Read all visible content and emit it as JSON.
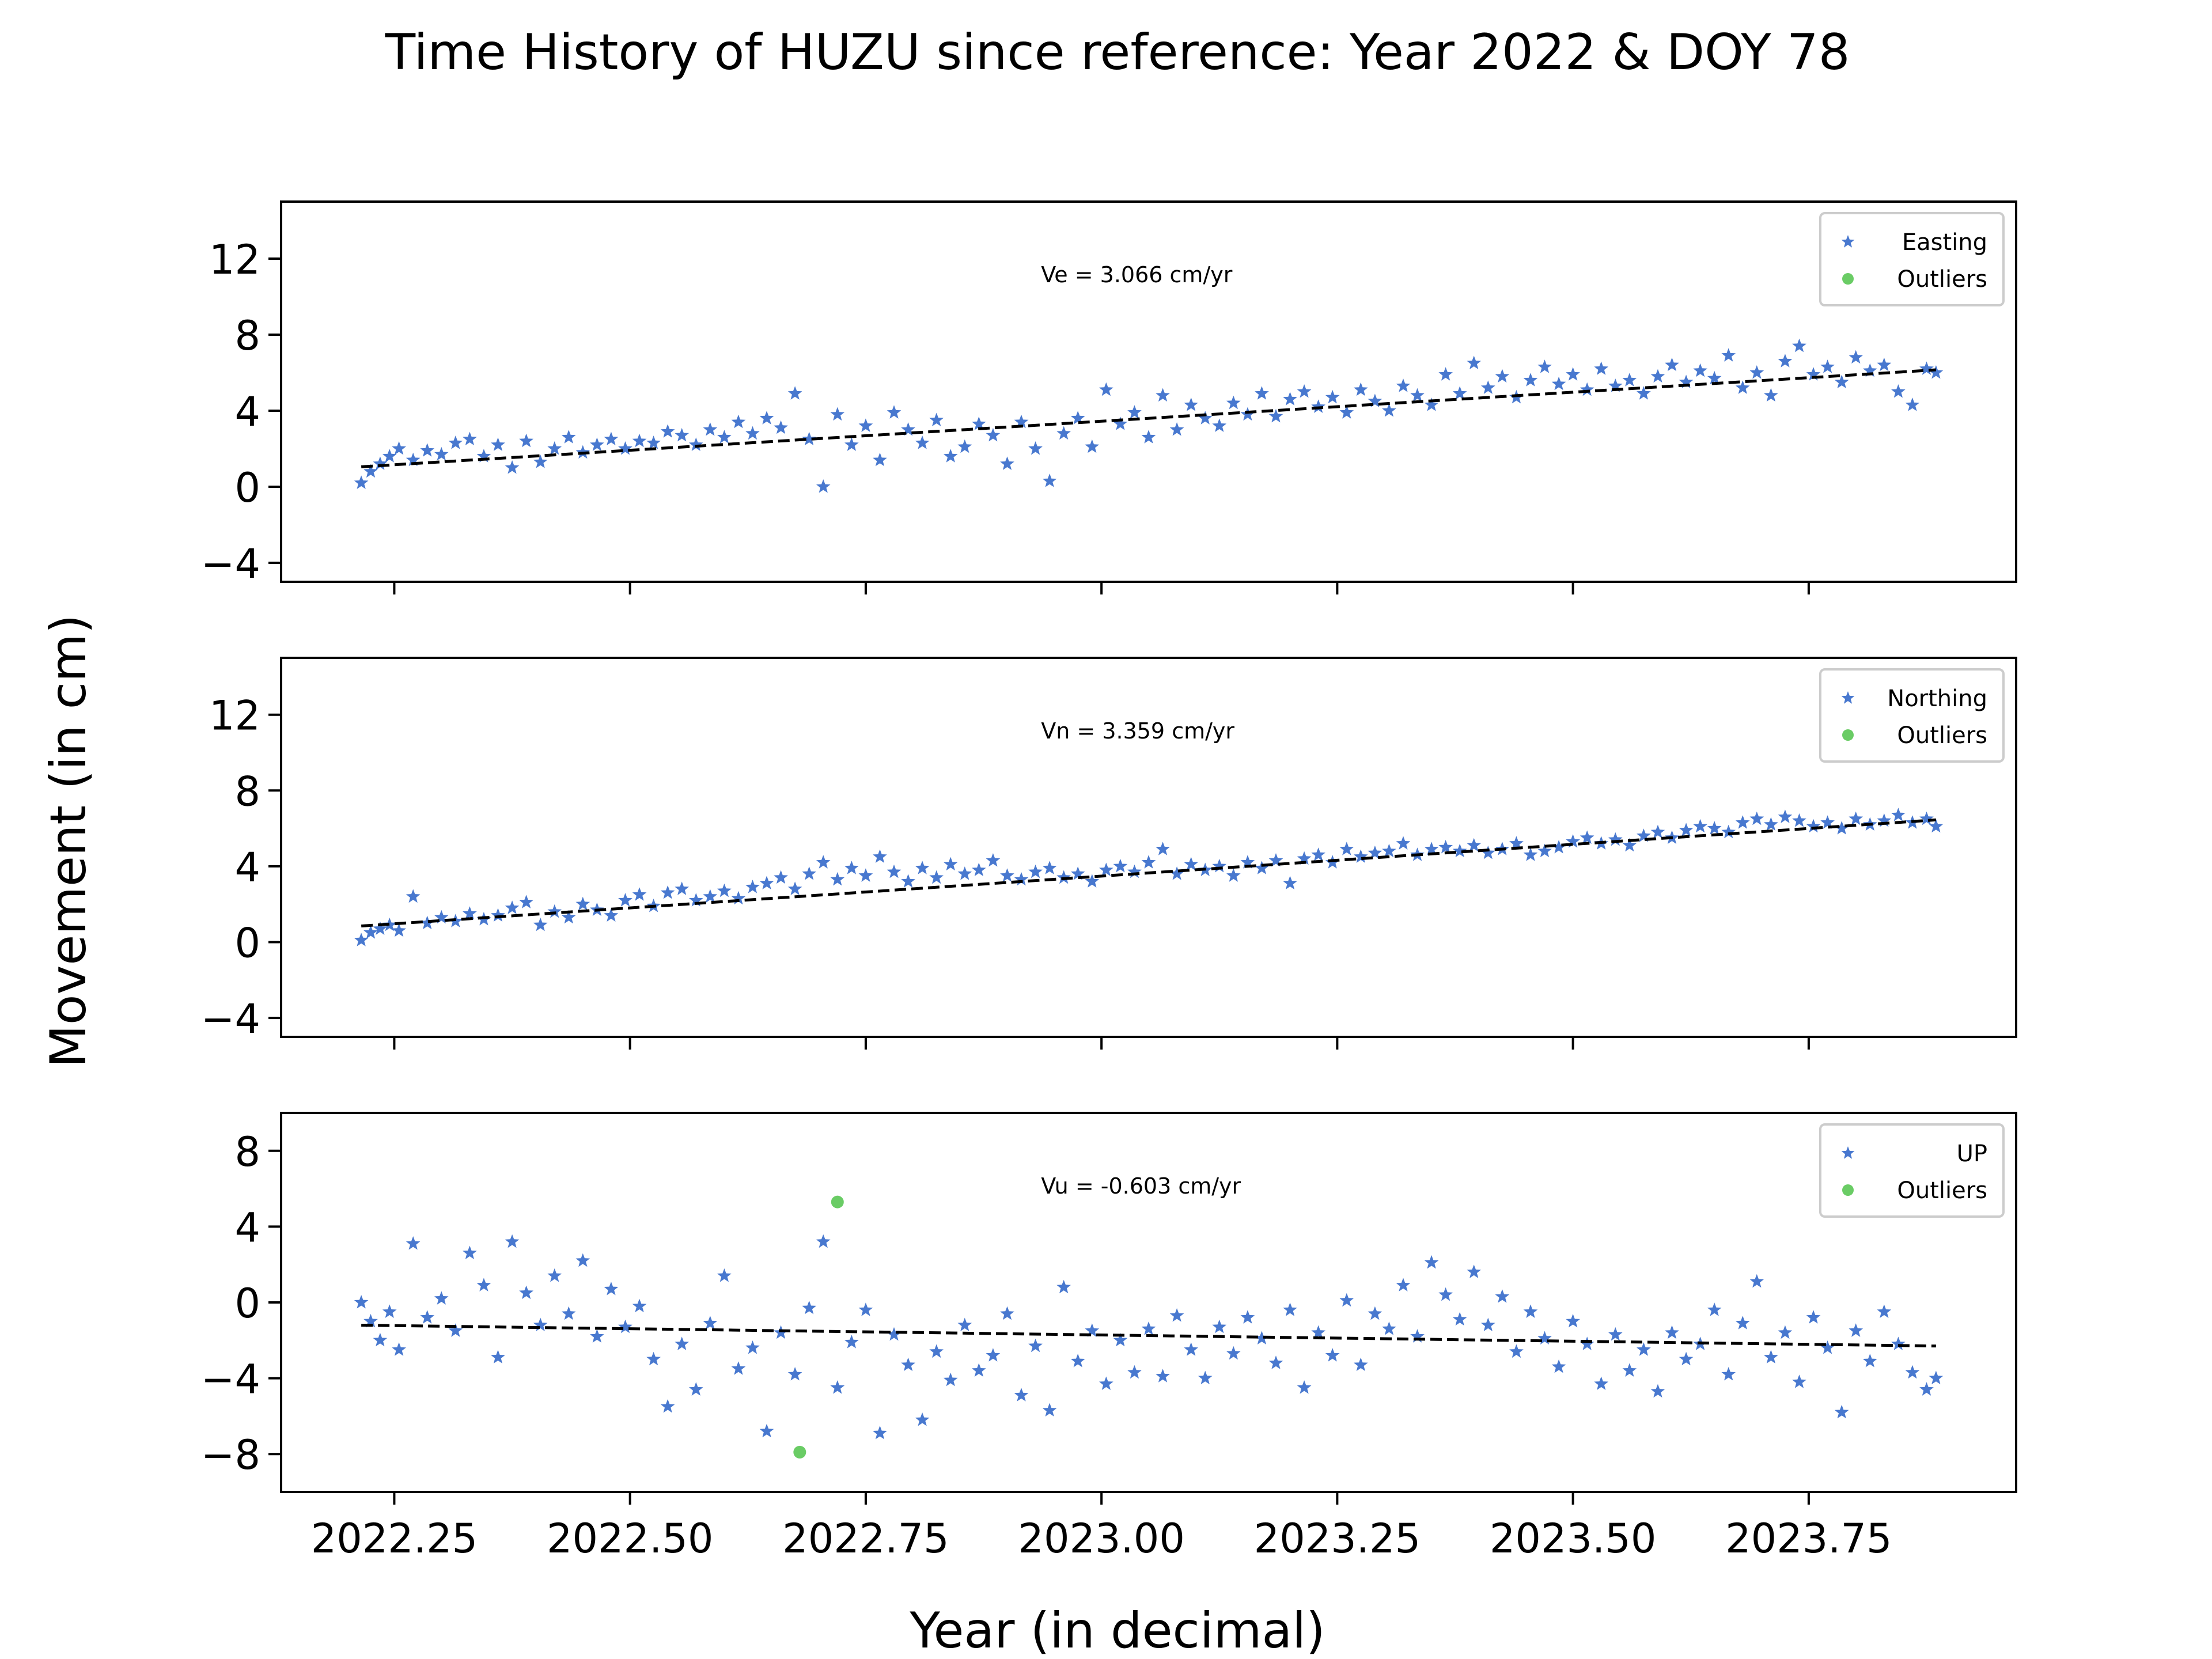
{
  "figure": {
    "title": "Time History of HUZU since reference: Year 2022 & DOY 78",
    "xlabel": "Year (in decimal)",
    "ylabel": "Movement (in cm)"
  },
  "colors": {
    "data": "#4878cf",
    "outlier": "#6acc65",
    "fit": "#000000"
  },
  "chart_data": [
    {
      "type": "scatter",
      "component": "Easting",
      "annotation": "Ve =  3.066 cm/yr",
      "xlim": [
        2022.13,
        2023.97
      ],
      "ylim": [
        -5,
        15
      ],
      "xticks": [
        2022.25,
        2022.5,
        2022.75,
        2023.0,
        2023.25,
        2023.5,
        2023.75
      ],
      "xtick_labels": [],
      "yticks": [
        -4,
        0,
        4,
        8,
        12
      ],
      "ytick_labels": [
        "−4",
        "0",
        "4",
        "8",
        "12"
      ],
      "legend": {
        "position": "top-right",
        "entries": [
          "Easting",
          "Outliers"
        ]
      },
      "fit": {
        "x": [
          2022.215,
          2023.885
        ],
        "y": [
          1.05,
          6.15
        ]
      },
      "series": [
        {
          "name": "Easting",
          "marker": "star",
          "x": [
            2022.215,
            2022.225,
            2022.235,
            2022.245,
            2022.255,
            2022.27,
            2022.285,
            2022.3,
            2022.315,
            2022.33,
            2022.345,
            2022.36,
            2022.375,
            2022.39,
            2022.405,
            2022.42,
            2022.435,
            2022.45,
            2022.465,
            2022.48,
            2022.495,
            2022.51,
            2022.525,
            2022.54,
            2022.555,
            2022.57,
            2022.585,
            2022.6,
            2022.615,
            2022.63,
            2022.645,
            2022.66,
            2022.675,
            2022.69,
            2022.705,
            2022.72,
            2022.735,
            2022.75,
            2022.765,
            2022.78,
            2022.795,
            2022.81,
            2022.825,
            2022.84,
            2022.855,
            2022.87,
            2022.885,
            2022.9,
            2022.915,
            2022.93,
            2022.945,
            2022.96,
            2022.975,
            2022.99,
            2023.005,
            2023.02,
            2023.035,
            2023.05,
            2023.065,
            2023.08,
            2023.095,
            2023.11,
            2023.125,
            2023.14,
            2023.155,
            2023.17,
            2023.185,
            2023.2,
            2023.215,
            2023.23,
            2023.245,
            2023.26,
            2023.275,
            2023.29,
            2023.305,
            2023.32,
            2023.335,
            2023.35,
            2023.365,
            2023.38,
            2023.395,
            2023.41,
            2023.425,
            2023.44,
            2023.455,
            2023.47,
            2023.485,
            2023.5,
            2023.515,
            2023.53,
            2023.545,
            2023.56,
            2023.575,
            2023.59,
            2023.605,
            2023.62,
            2023.635,
            2023.65,
            2023.665,
            2023.68,
            2023.695,
            2023.71,
            2023.725,
            2023.74,
            2023.755,
            2023.77,
            2023.785,
            2023.8,
            2023.815,
            2023.83,
            2023.845,
            2023.86,
            2023.875,
            2023.885
          ],
          "y": [
            0.2,
            0.8,
            1.2,
            1.6,
            2.0,
            1.4,
            1.9,
            1.7,
            2.3,
            2.5,
            1.6,
            2.2,
            1.0,
            2.4,
            1.3,
            2.0,
            2.6,
            1.8,
            2.2,
            2.5,
            2.0,
            2.4,
            2.3,
            2.9,
            2.7,
            2.2,
            3.0,
            2.6,
            3.4,
            2.8,
            3.6,
            3.1,
            4.9,
            2.5,
            0.0,
            3.8,
            2.2,
            3.2,
            1.4,
            3.9,
            3.0,
            2.3,
            3.5,
            1.6,
            2.1,
            3.3,
            2.7,
            1.2,
            3.4,
            2.0,
            0.3,
            2.8,
            3.6,
            2.1,
            5.1,
            3.3,
            3.9,
            2.6,
            4.8,
            3.0,
            4.3,
            3.6,
            3.2,
            4.4,
            3.8,
            4.9,
            3.7,
            4.6,
            5.0,
            4.2,
            4.7,
            3.9,
            5.1,
            4.5,
            4.0,
            5.3,
            4.8,
            4.3,
            5.9,
            4.9,
            6.5,
            5.2,
            5.8,
            4.7,
            5.6,
            6.3,
            5.4,
            5.9,
            5.1,
            6.2,
            5.3,
            5.6,
            4.9,
            5.8,
            6.4,
            5.5,
            6.1,
            5.7,
            6.9,
            5.2,
            6.0,
            4.8,
            6.6,
            7.4,
            5.9,
            6.3,
            5.5,
            6.8,
            6.1,
            6.4,
            5.0,
            4.3,
            6.2,
            6.0
          ]
        },
        {
          "name": "Outliers",
          "marker": "circle",
          "x": [],
          "y": []
        }
      ]
    },
    {
      "type": "scatter",
      "component": "Northing",
      "annotation": "Vn =  3.359 cm/yr",
      "xlim": [
        2022.13,
        2023.97
      ],
      "ylim": [
        -5,
        15
      ],
      "xticks": [
        2022.25,
        2022.5,
        2022.75,
        2023.0,
        2023.25,
        2023.5,
        2023.75
      ],
      "xtick_labels": [],
      "yticks": [
        -4,
        0,
        4,
        8,
        12
      ],
      "ytick_labels": [
        "−4",
        "0",
        "4",
        "8",
        "12"
      ],
      "legend": {
        "position": "top-right",
        "entries": [
          "Northing",
          "Outliers"
        ]
      },
      "fit": {
        "x": [
          2022.215,
          2023.885
        ],
        "y": [
          0.85,
          6.45
        ]
      },
      "series": [
        {
          "name": "Northing",
          "marker": "star",
          "x": [
            2022.215,
            2022.225,
            2022.235,
            2022.245,
            2022.255,
            2022.27,
            2022.285,
            2022.3,
            2022.315,
            2022.33,
            2022.345,
            2022.36,
            2022.375,
            2022.39,
            2022.405,
            2022.42,
            2022.435,
            2022.45,
            2022.465,
            2022.48,
            2022.495,
            2022.51,
            2022.525,
            2022.54,
            2022.555,
            2022.57,
            2022.585,
            2022.6,
            2022.615,
            2022.63,
            2022.645,
            2022.66,
            2022.675,
            2022.69,
            2022.705,
            2022.72,
            2022.735,
            2022.75,
            2022.765,
            2022.78,
            2022.795,
            2022.81,
            2022.825,
            2022.84,
            2022.855,
            2022.87,
            2022.885,
            2022.9,
            2022.915,
            2022.93,
            2022.945,
            2022.96,
            2022.975,
            2022.99,
            2023.005,
            2023.02,
            2023.035,
            2023.05,
            2023.065,
            2023.08,
            2023.095,
            2023.11,
            2023.125,
            2023.14,
            2023.155,
            2023.17,
            2023.185,
            2023.2,
            2023.215,
            2023.23,
            2023.245,
            2023.26,
            2023.275,
            2023.29,
            2023.305,
            2023.32,
            2023.335,
            2023.35,
            2023.365,
            2023.38,
            2023.395,
            2023.41,
            2023.425,
            2023.44,
            2023.455,
            2023.47,
            2023.485,
            2023.5,
            2023.515,
            2023.53,
            2023.545,
            2023.56,
            2023.575,
            2023.59,
            2023.605,
            2023.62,
            2023.635,
            2023.65,
            2023.665,
            2023.68,
            2023.695,
            2023.71,
            2023.725,
            2023.74,
            2023.755,
            2023.77,
            2023.785,
            2023.8,
            2023.815,
            2023.83,
            2023.845,
            2023.86,
            2023.875,
            2023.885
          ],
          "y": [
            0.1,
            0.5,
            0.7,
            0.9,
            0.6,
            2.4,
            1.0,
            1.3,
            1.1,
            1.5,
            1.2,
            1.4,
            1.8,
            2.1,
            0.9,
            1.6,
            1.3,
            2.0,
            1.7,
            1.4,
            2.2,
            2.5,
            1.9,
            2.6,
            2.8,
            2.2,
            2.4,
            2.7,
            2.3,
            2.9,
            3.1,
            3.4,
            2.8,
            3.6,
            4.2,
            3.3,
            3.9,
            3.5,
            4.5,
            3.7,
            3.2,
            3.9,
            3.4,
            4.1,
            3.6,
            3.8,
            4.3,
            3.5,
            3.3,
            3.7,
            3.9,
            3.4,
            3.6,
            3.2,
            3.8,
            4.0,
            3.7,
            4.2,
            4.9,
            3.6,
            4.1,
            3.8,
            4.0,
            3.5,
            4.2,
            3.9,
            4.3,
            3.1,
            4.4,
            4.6,
            4.2,
            4.9,
            4.5,
            4.7,
            4.8,
            5.2,
            4.6,
            4.9,
            5.0,
            4.8,
            5.1,
            4.7,
            4.9,
            5.2,
            4.6,
            4.8,
            5.0,
            5.3,
            5.5,
            5.2,
            5.4,
            5.1,
            5.6,
            5.8,
            5.5,
            5.9,
            6.1,
            6.0,
            5.8,
            6.3,
            6.5,
            6.2,
            6.6,
            6.4,
            6.1,
            6.3,
            6.0,
            6.5,
            6.2,
            6.4,
            6.7,
            6.3,
            6.5,
            6.1
          ]
        },
        {
          "name": "Outliers",
          "marker": "circle",
          "x": [],
          "y": []
        }
      ]
    },
    {
      "type": "scatter",
      "component": "UP",
      "annotation": "Vu = -0.603 cm/yr",
      "xlim": [
        2022.13,
        2023.97
      ],
      "ylim": [
        -10,
        10
      ],
      "xticks": [
        2022.25,
        2022.5,
        2022.75,
        2023.0,
        2023.25,
        2023.5,
        2023.75
      ],
      "xtick_labels": [
        "2022.25",
        "2022.50",
        "2022.75",
        "2023.00",
        "2023.25",
        "2023.50",
        "2023.75"
      ],
      "yticks": [
        -8,
        -4,
        0,
        4,
        8
      ],
      "ytick_labels": [
        "−8",
        "−4",
        "0",
        "4",
        "8"
      ],
      "legend": {
        "position": "top-right",
        "entries": [
          "UP",
          "Outliers"
        ]
      },
      "fit": {
        "x": [
          2022.215,
          2023.885
        ],
        "y": [
          -1.2,
          -2.3
        ]
      },
      "series": [
        {
          "name": "UP",
          "marker": "star",
          "x": [
            2022.215,
            2022.225,
            2022.235,
            2022.245,
            2022.255,
            2022.27,
            2022.285,
            2022.3,
            2022.315,
            2022.33,
            2022.345,
            2022.36,
            2022.375,
            2022.39,
            2022.405,
            2022.42,
            2022.435,
            2022.45,
            2022.465,
            2022.48,
            2022.495,
            2022.51,
            2022.525,
            2022.54,
            2022.555,
            2022.57,
            2022.585,
            2022.6,
            2022.615,
            2022.63,
            2022.645,
            2022.66,
            2022.675,
            2022.69,
            2022.705,
            2022.72,
            2022.735,
            2022.75,
            2022.765,
            2022.78,
            2022.795,
            2022.81,
            2022.825,
            2022.84,
            2022.855,
            2022.87,
            2022.885,
            2022.9,
            2022.915,
            2022.93,
            2022.945,
            2022.96,
            2022.975,
            2022.99,
            2023.005,
            2023.02,
            2023.035,
            2023.05,
            2023.065,
            2023.08,
            2023.095,
            2023.11,
            2023.125,
            2023.14,
            2023.155,
            2023.17,
            2023.185,
            2023.2,
            2023.215,
            2023.23,
            2023.245,
            2023.26,
            2023.275,
            2023.29,
            2023.305,
            2023.32,
            2023.335,
            2023.35,
            2023.365,
            2023.38,
            2023.395,
            2023.41,
            2023.425,
            2023.44,
            2023.455,
            2023.47,
            2023.485,
            2023.5,
            2023.515,
            2023.53,
            2023.545,
            2023.56,
            2023.575,
            2023.59,
            2023.605,
            2023.62,
            2023.635,
            2023.65,
            2023.665,
            2023.68,
            2023.695,
            2023.71,
            2023.725,
            2023.74,
            2023.755,
            2023.77,
            2023.785,
            2023.8,
            2023.815,
            2023.83,
            2023.845,
            2023.86,
            2023.875,
            2023.885
          ],
          "y": [
            0.0,
            -1.0,
            -2.0,
            -0.5,
            -2.5,
            3.1,
            -0.8,
            0.2,
            -1.5,
            2.6,
            0.9,
            -2.9,
            3.2,
            0.5,
            -1.2,
            1.4,
            -0.6,
            2.2,
            -1.8,
            0.7,
            -1.3,
            -0.2,
            -3.0,
            -5.5,
            -2.2,
            -4.6,
            -1.1,
            1.4,
            -3.5,
            -2.4,
            -6.8,
            -1.6,
            -3.8,
            -0.3,
            3.2,
            -4.5,
            -2.1,
            -0.4,
            -6.9,
            -1.7,
            -3.3,
            -6.2,
            -2.6,
            -4.1,
            -1.2,
            -3.6,
            -2.8,
            -0.6,
            -4.9,
            -2.3,
            -5.7,
            0.8,
            -3.1,
            -1.5,
            -4.3,
            -2.0,
            -3.7,
            -1.4,
            -3.9,
            -0.7,
            -2.5,
            -4.0,
            -1.3,
            -2.7,
            -0.8,
            -1.9,
            -3.2,
            -0.4,
            -4.5,
            -1.6,
            -2.8,
            0.1,
            -3.3,
            -0.6,
            -1.4,
            0.9,
            -1.8,
            2.1,
            0.4,
            -0.9,
            1.6,
            -1.2,
            0.3,
            -2.6,
            -0.5,
            -1.9,
            -3.4,
            -1.0,
            -2.2,
            -4.3,
            -1.7,
            -3.6,
            -2.5,
            -4.7,
            -1.6,
            -3.0,
            -2.2,
            -0.4,
            -3.8,
            -1.1,
            1.1,
            -2.9,
            -1.6,
            -4.2,
            -0.8,
            -2.4,
            -5.8,
            -1.5,
            -3.1,
            -0.5,
            -2.2,
            -3.7,
            -4.6,
            -4.0
          ]
        },
        {
          "name": "Outliers",
          "marker": "circle",
          "x": [
            2022.68,
            2022.72
          ],
          "y": [
            -7.9,
            5.3
          ]
        }
      ]
    }
  ]
}
